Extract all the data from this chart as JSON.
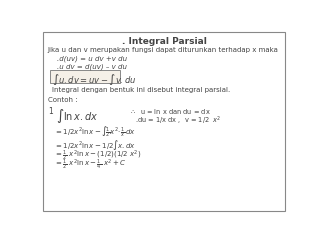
{
  "title": ". Integral Parsial",
  "bg_color": "#ffffff",
  "border_color": "#888888",
  "text_color": "#444444",
  "line1": "Jika u dan v merupakan fungsi dapat diturunkan terhadap x maka",
  "line2": ".d(uv) = u dv +v du",
  "line3": ".u dv = d(uv) – v du",
  "line4": "Integral dengan bentuk ini disebut integral parsial.",
  "contoh": "Contoh :",
  "ex_num": "1"
}
